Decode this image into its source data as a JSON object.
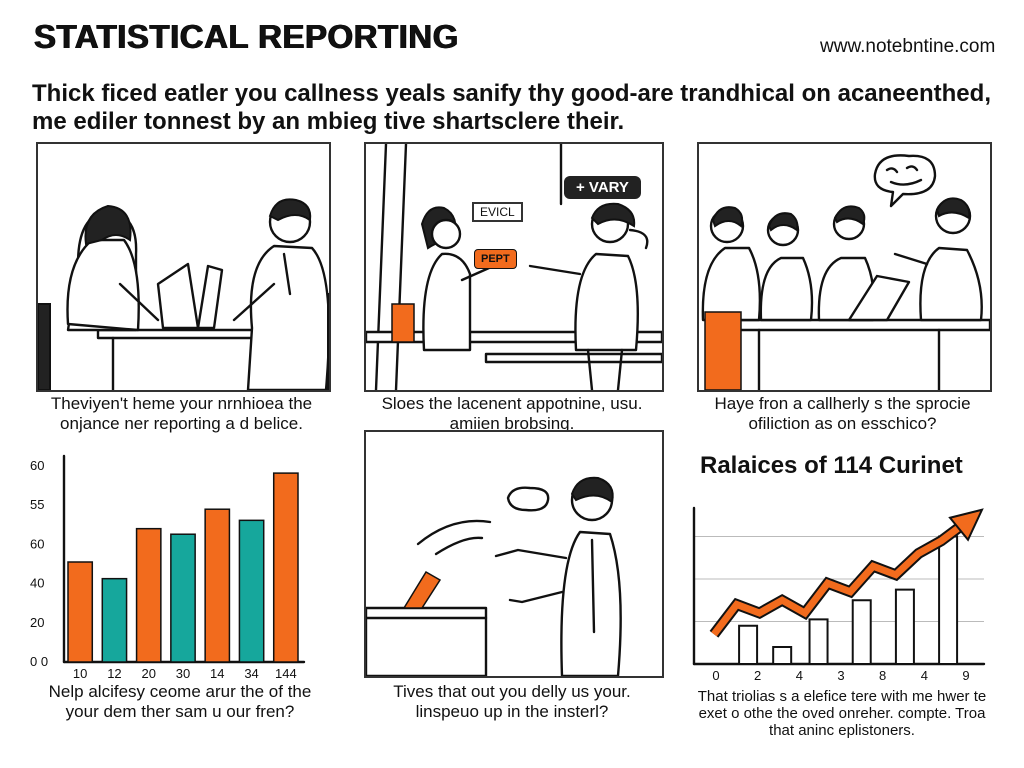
{
  "header": {
    "title": "STATISTICAL REPORTING",
    "url": "www.notebntine.com",
    "intro": "Thick ficed eatler you callness yeals sanify thy good-are trandhical on acaneenthed, me ediler tonnest by an mbieg tive shartsclere their."
  },
  "panels": [
    {
      "caption": "Theviyen't heme your nrnhioea the onjance ner reporting a d belice."
    },
    {
      "sign1": "EVICL",
      "sign2": "+ VARY",
      "note": "PEPT",
      "caption": "Sloes the lacenent appotnine, usu. amiien brobsing."
    },
    {
      "caption": "Haye fron a callherly s the sprocie ofiliction as on esschico?"
    },
    {
      "caption": "Nelp alcifesy ceome arur the of the your dem ther sam u our fren?"
    },
    {
      "caption": "Tives that out you delly us your. linspeuo up in the insterl?"
    },
    {
      "caption": "That triolias s a elefice tere with me hwer te exet o othe the oved onreher. compte. Troa that aninc eplistoners."
    }
  ],
  "chart_data": [
    {
      "type": "bar",
      "categories": [
        "10",
        "12",
        "20",
        "30",
        "14",
        "34",
        "144"
      ],
      "values": [
        36,
        30,
        48,
        46,
        55,
        51,
        68
      ],
      "colors": [
        "#f26b1d",
        "#16a79c",
        "#f26b1d",
        "#16a79c",
        "#f26b1d",
        "#16a79c",
        "#f26b1d"
      ],
      "ytick_labels": [
        "60",
        "55",
        "60",
        "40",
        "20",
        "0 0"
      ],
      "ylim": [
        0,
        72
      ],
      "title": "",
      "xlabel": "",
      "ylabel": ""
    },
    {
      "type": "line",
      "title": "Ralaices of 114 Curinet",
      "xtick_labels": [
        "0",
        "2",
        "4",
        "3",
        "8",
        "4",
        "9"
      ],
      "x": [
        0,
        1,
        2,
        3,
        4,
        5,
        6,
        7,
        8,
        9,
        10,
        11
      ],
      "y": [
        14,
        28,
        24,
        30,
        24,
        38,
        34,
        46,
        42,
        52,
        58,
        66
      ],
      "bars": [
        {
          "x": 1.5,
          "value": 18
        },
        {
          "x": 3.0,
          "value": 8
        },
        {
          "x": 4.6,
          "value": 21
        },
        {
          "x": 6.5,
          "value": 30
        },
        {
          "x": 8.4,
          "value": 35
        },
        {
          "x": 10.3,
          "value": 60
        }
      ],
      "ylim": [
        0,
        80
      ],
      "grid": true
    }
  ]
}
